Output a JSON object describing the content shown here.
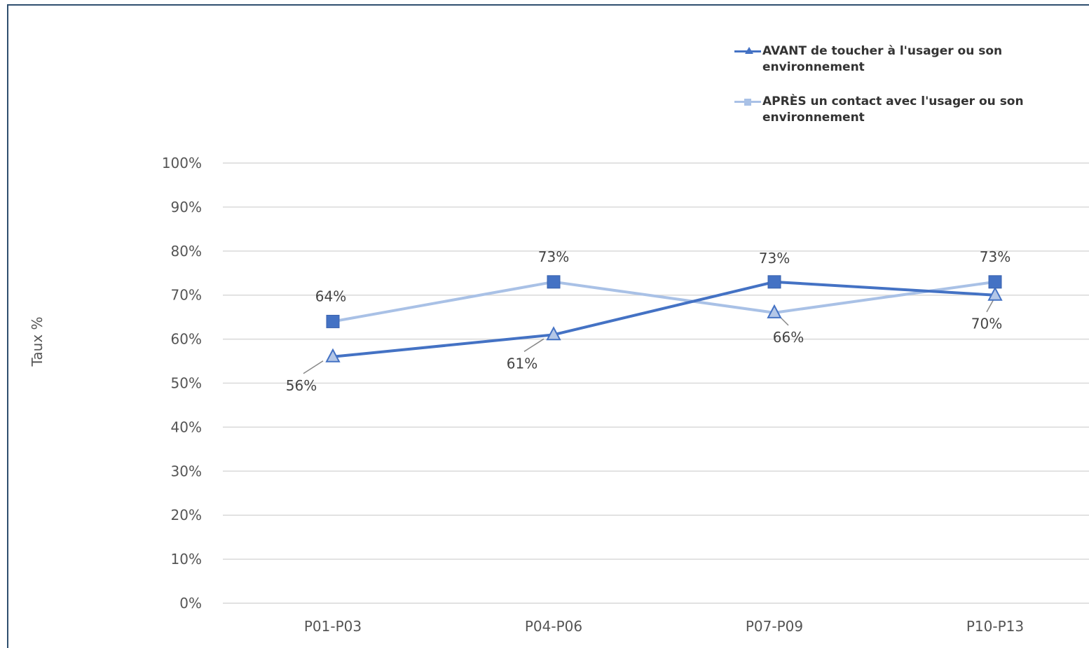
{
  "chart_data": {
    "type": "line",
    "title": "",
    "ylabel": "Taux %",
    "xlabel": "",
    "categories": [
      "P01-P03",
      "P04-P06",
      "P07-P09",
      "P10-P13"
    ],
    "ylim": [
      0,
      100
    ],
    "yticks": [
      "0%",
      "10%",
      "20%",
      "30%",
      "40%",
      "50%",
      "60%",
      "70%",
      "80%",
      "90%",
      "100%"
    ],
    "grid": true,
    "legend_position": "top-right",
    "series": [
      {
        "name": "AVANT de toucher à l'usager ou son environnement",
        "values": [
          56,
          61,
          73,
          70
        ],
        "labels": [
          "56%",
          "61%",
          "73%",
          "70%"
        ],
        "color": "#4472c4",
        "marker": "triangle"
      },
      {
        "name": "APRÈS un contact avec l'usager ou son environnement",
        "values": [
          64,
          73,
          66,
          73
        ],
        "labels": [
          "64%",
          "73%",
          "66%",
          "73%"
        ],
        "color": "#a9c1e6",
        "marker": "square"
      }
    ]
  }
}
